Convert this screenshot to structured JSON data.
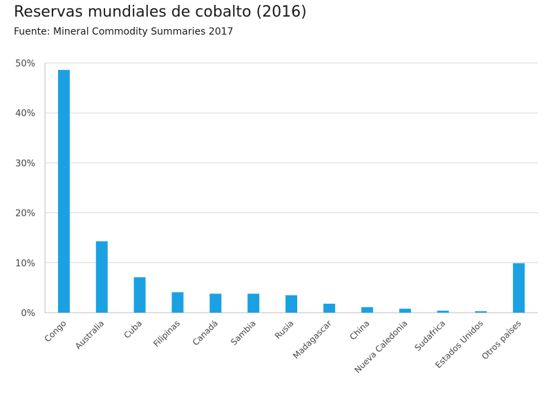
{
  "title": "Reservas mundiales de cobalto (2016)",
  "subtitle": "Fuente: Mineral Commodity Summaries 2017",
  "chart_data": {
    "type": "bar",
    "title": "Reservas mundiales de cobalto (2016)",
    "subtitle": "Fuente: Mineral Commodity Summaries 2017",
    "xlabel": "",
    "ylabel": "",
    "categories": [
      "Congo",
      "Australia",
      "Cuba",
      "Filipinas",
      "Canadá",
      "Sambia",
      "Rusia",
      "Madagascar",
      "China",
      "Nueva Caledonia",
      "Sudafrica",
      "Estados Unidos",
      "Otros países"
    ],
    "values": [
      48.6,
      14.3,
      7.1,
      4.1,
      3.8,
      3.8,
      3.5,
      1.8,
      1.1,
      0.8,
      0.4,
      0.3,
      9.9
    ],
    "ylim": [
      0,
      50
    ],
    "yticks": [
      0,
      10,
      20,
      30,
      40,
      50
    ],
    "ytick_labels": [
      "0%",
      "10%",
      "20%",
      "30%",
      "40%",
      "50%"
    ],
    "bar_color": "#1ba1e2",
    "grid": true,
    "legend": "none"
  }
}
